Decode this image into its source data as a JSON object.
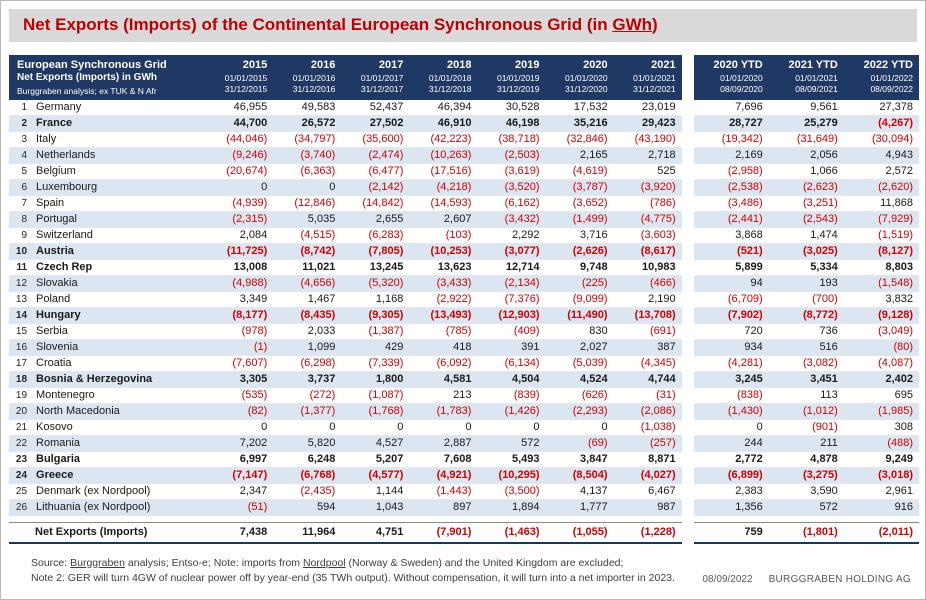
{
  "title": {
    "main": "Net Exports (Imports) of the Continental European Synchronous Grid (in ",
    "underlined": "GWh",
    "suffix": ")"
  },
  "colors": {
    "titlebar_bg": "#d9d9d9",
    "title_text": "#c00000",
    "header_bg": "#1f3864",
    "band_bg": "#dce6f1",
    "negative": "#d40000",
    "total_border": "#17375e"
  },
  "table": {
    "corner": {
      "line1": "European Synchronous Grid",
      "line2": "Net Exports (Imports) in GWh",
      "line3": "Burggraben analysis; ex TUK & N Afr"
    },
    "columns": [
      {
        "label": "2015",
        "from": "01/01/2015",
        "to": "31/12/2015",
        "group": "main"
      },
      {
        "label": "2016",
        "from": "01/01/2016",
        "to": "31/12/2016",
        "group": "main"
      },
      {
        "label": "2017",
        "from": "01/01/2017",
        "to": "31/12/2017",
        "group": "main"
      },
      {
        "label": "2018",
        "from": "01/01/2018",
        "to": "31/12/2018",
        "group": "main"
      },
      {
        "label": "2019",
        "from": "01/01/2019",
        "to": "31/12/2019",
        "group": "main"
      },
      {
        "label": "2020",
        "from": "01/01/2020",
        "to": "31/12/2020",
        "group": "main"
      },
      {
        "label": "2021",
        "from": "01/01/2021",
        "to": "31/12/2021",
        "group": "main"
      },
      {
        "label": "2020 YTD",
        "from": "01/01/2020",
        "to": "08/09/2020",
        "group": "ytd"
      },
      {
        "label": "2021 YTD",
        "from": "01/01/2021",
        "to": "08/09/2021",
        "group": "ytd"
      },
      {
        "label": "2022 YTD",
        "from": "01/01/2022",
        "to": "08/09/2022",
        "group": "ytd"
      }
    ],
    "rows": [
      {
        "num": 1,
        "name": "Germany",
        "bold": false,
        "values": [
          "46,955",
          "49,583",
          "52,437",
          "46,394",
          "30,528",
          "17,532",
          "23,019",
          "7,696",
          "9,561",
          "27,378"
        ]
      },
      {
        "num": 2,
        "name": "France",
        "bold": true,
        "values": [
          "44,700",
          "26,572",
          "27,502",
          "46,910",
          "46,198",
          "35,216",
          "29,423",
          "28,727",
          "25,279",
          "(4,267)"
        ]
      },
      {
        "num": 3,
        "name": "Italy",
        "bold": false,
        "values": [
          "(44,046)",
          "(34,797)",
          "(35,600)",
          "(42,223)",
          "(38,718)",
          "(32,846)",
          "(43,190)",
          "(19,342)",
          "(31,649)",
          "(30,094)"
        ]
      },
      {
        "num": 4,
        "name": "Netherlands",
        "bold": false,
        "values": [
          "(9,246)",
          "(3,740)",
          "(2,474)",
          "(10,263)",
          "(2,503)",
          "2,165",
          "2,718",
          "2,169",
          "2,056",
          "4,943"
        ]
      },
      {
        "num": 5,
        "name": "Belgium",
        "bold": false,
        "values": [
          "(20,674)",
          "(6,363)",
          "(6,477)",
          "(17,516)",
          "(3,619)",
          "(4,619)",
          "525",
          "(2,958)",
          "1,066",
          "2,572"
        ]
      },
      {
        "num": 6,
        "name": "Luxembourg",
        "bold": false,
        "values": [
          "0",
          "0",
          "(2,142)",
          "(4,218)",
          "(3,520)",
          "(3,787)",
          "(3,920)",
          "(2,538)",
          "(2,623)",
          "(2,620)"
        ]
      },
      {
        "num": 7,
        "name": "Spain",
        "bold": false,
        "values": [
          "(4,939)",
          "(12,846)",
          "(14,842)",
          "(14,593)",
          "(6,162)",
          "(3,652)",
          "(786)",
          "(3,486)",
          "(3,251)",
          "11,868"
        ]
      },
      {
        "num": 8,
        "name": "Portugal",
        "bold": false,
        "values": [
          "(2,315)",
          "5,035",
          "2,655",
          "2,607",
          "(3,432)",
          "(1,499)",
          "(4,775)",
          "(2,441)",
          "(2,543)",
          "(7,929)"
        ]
      },
      {
        "num": 9,
        "name": "Switzerland",
        "bold": false,
        "values": [
          "2,084",
          "(4,515)",
          "(6,283)",
          "(103)",
          "2,292",
          "3,716",
          "(3,603)",
          "3,868",
          "1,474",
          "(1,519)"
        ]
      },
      {
        "num": 10,
        "name": "Austria",
        "bold": true,
        "values": [
          "(11,725)",
          "(8,742)",
          "(7,805)",
          "(10,253)",
          "(3,077)",
          "(2,626)",
          "(8,617)",
          "(521)",
          "(3,025)",
          "(8,127)"
        ]
      },
      {
        "num": 11,
        "name": "Czech Rep",
        "bold": true,
        "values": [
          "13,008",
          "11,021",
          "13,245",
          "13,623",
          "12,714",
          "9,748",
          "10,983",
          "5,899",
          "5,334",
          "8,803"
        ]
      },
      {
        "num": 12,
        "name": "Slovakia",
        "bold": false,
        "values": [
          "(4,988)",
          "(4,656)",
          "(5,320)",
          "(3,433)",
          "(2,134)",
          "(225)",
          "(466)",
          "94",
          "193",
          "(1,548)"
        ]
      },
      {
        "num": 13,
        "name": "Poland",
        "bold": false,
        "values": [
          "3,349",
          "1,467",
          "1,168",
          "(2,922)",
          "(7,376)",
          "(9,099)",
          "2,190",
          "(6,709)",
          "(700)",
          "3,832"
        ]
      },
      {
        "num": 14,
        "name": "Hungary",
        "bold": true,
        "values": [
          "(8,177)",
          "(8,435)",
          "(9,305)",
          "(13,493)",
          "(12,903)",
          "(11,490)",
          "(13,708)",
          "(7,902)",
          "(8,772)",
          "(9,128)"
        ]
      },
      {
        "num": 15,
        "name": "Serbia",
        "bold": false,
        "values": [
          "(978)",
          "2,033",
          "(1,387)",
          "(785)",
          "(409)",
          "830",
          "(691)",
          "720",
          "736",
          "(3,049)"
        ]
      },
      {
        "num": 16,
        "name": "Slovenia",
        "bold": false,
        "values": [
          "(1)",
          "1,099",
          "429",
          "418",
          "391",
          "2,027",
          "387",
          "934",
          "516",
          "(80)"
        ]
      },
      {
        "num": 17,
        "name": "Croatia",
        "bold": false,
        "values": [
          "(7,607)",
          "(6,298)",
          "(7,339)",
          "(6,092)",
          "(6,134)",
          "(5,039)",
          "(4,345)",
          "(4,281)",
          "(3,082)",
          "(4,087)"
        ]
      },
      {
        "num": 18,
        "name": "Bosnia & Herzegovina",
        "bold": true,
        "values": [
          "3,305",
          "3,737",
          "1,800",
          "4,581",
          "4,504",
          "4,524",
          "4,744",
          "3,245",
          "3,451",
          "2,402"
        ]
      },
      {
        "num": 19,
        "name": "Montenegro",
        "bold": false,
        "values": [
          "(535)",
          "(272)",
          "(1,087)",
          "213",
          "(839)",
          "(626)",
          "(31)",
          "(838)",
          "113",
          "695"
        ]
      },
      {
        "num": 20,
        "name": "North Macedonia",
        "bold": false,
        "values": [
          "(82)",
          "(1,377)",
          "(1,768)",
          "(1,783)",
          "(1,426)",
          "(2,293)",
          "(2,086)",
          "(1,430)",
          "(1,012)",
          "(1,985)"
        ]
      },
      {
        "num": 21,
        "name": "Kosovo",
        "bold": false,
        "values": [
          "0",
          "0",
          "0",
          "0",
          "0",
          "0",
          "(1,038)",
          "0",
          "(901)",
          "308"
        ]
      },
      {
        "num": 22,
        "name": "Romania",
        "bold": false,
        "values": [
          "7,202",
          "5,820",
          "4,527",
          "2,887",
          "572",
          "(69)",
          "(257)",
          "244",
          "211",
          "(488)"
        ]
      },
      {
        "num": 23,
        "name": "Bulgaria",
        "bold": true,
        "values": [
          "6,997",
          "6,248",
          "5,207",
          "7,608",
          "5,493",
          "3,847",
          "8,871",
          "2,772",
          "4,878",
          "9,249"
        ]
      },
      {
        "num": 24,
        "name": "Greece",
        "bold": true,
        "values": [
          "(7,147)",
          "(6,768)",
          "(4,577)",
          "(4,921)",
          "(10,295)",
          "(8,504)",
          "(4,027)",
          "(6,899)",
          "(3,275)",
          "(3,018)"
        ]
      },
      {
        "num": 25,
        "name": "Denmark (ex Nordpool)",
        "bold": false,
        "values": [
          "2,347",
          "(2,435)",
          "1,144",
          "(1,443)",
          "(3,500)",
          "4,137",
          "6,467",
          "2,383",
          "3,590",
          "2,961"
        ]
      },
      {
        "num": 26,
        "name": "Lithuania (ex Nordpool)",
        "bold": false,
        "values": [
          "(51)",
          "594",
          "1,043",
          "897",
          "1,894",
          "1,777",
          "987",
          "1,356",
          "572",
          "916"
        ]
      }
    ],
    "total": {
      "label": "Net Exports (Imports)",
      "values": [
        "7,438",
        "11,964",
        "4,751",
        "(7,901)",
        "(1,463)",
        "(1,055)",
        "(1,228)",
        "759",
        "(1,801)",
        "(2,011)"
      ]
    }
  },
  "footer": {
    "note1_parts": [
      {
        "text": "Source: ",
        "underline": false
      },
      {
        "text": "Burggraben",
        "underline": true
      },
      {
        "text": " analysis; Entso-e; Note: imports from ",
        "underline": false
      },
      {
        "text": "Nordpool",
        "underline": true
      },
      {
        "text": " (Norway & Sweden) and the United Kingdom are excluded;",
        "underline": false
      }
    ],
    "note2": "Note 2: GER will turn 4GW of nuclear power off by year-end (35 TWh output). Without compensation, it will turn into a net importer in 2023.",
    "date": "08/09/2022",
    "company": "BURGGRABEN HOLDING AG"
  }
}
